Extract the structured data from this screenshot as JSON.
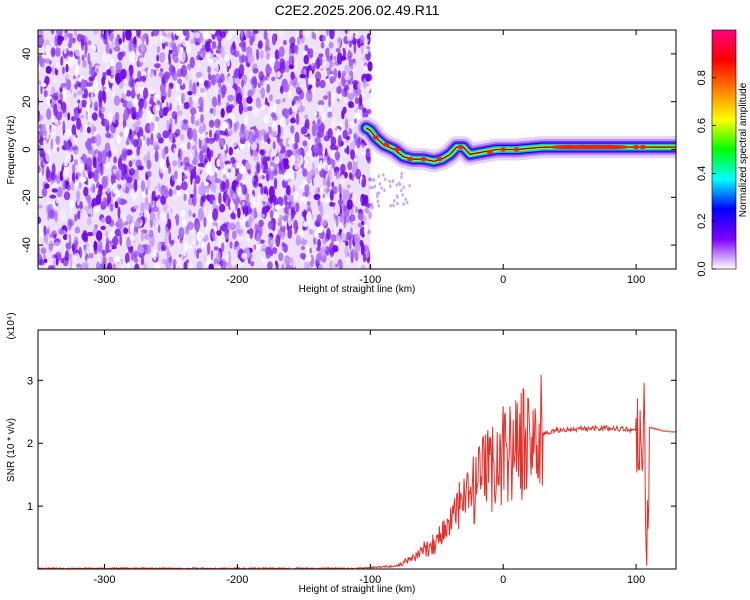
{
  "title": "C2E2.2025.206.02.49.R11",
  "chart_data": [
    {
      "type": "heatmap",
      "xlabel": "Height of straight line (km)",
      "ylabel": "Frequency (Hz)",
      "xlim": [
        -350,
        130
      ],
      "ylim": [
        -50,
        50
      ],
      "xticks": [
        -300,
        -200,
        -100,
        0,
        100
      ],
      "yticks": [
        -40,
        -20,
        0,
        20,
        40
      ],
      "noise_region_x": [
        -350,
        -100
      ],
      "ridge": [
        {
          "x": -103,
          "y": 9
        },
        {
          "x": -100,
          "y": 8
        },
        {
          "x": -96,
          "y": 5
        },
        {
          "x": -90,
          "y": 2
        },
        {
          "x": -82,
          "y": 0
        },
        {
          "x": -75,
          "y": -3
        },
        {
          "x": -68,
          "y": -4
        },
        {
          "x": -60,
          "y": -4
        },
        {
          "x": -52,
          "y": -5
        },
        {
          "x": -46,
          "y": -4
        },
        {
          "x": -40,
          "y": -2
        },
        {
          "x": -35,
          "y": 1
        },
        {
          "x": -30,
          "y": 1
        },
        {
          "x": -25,
          "y": -2
        },
        {
          "x": -15,
          "y": -1
        },
        {
          "x": -5,
          "y": 0
        },
        {
          "x": 10,
          "y": 0
        },
        {
          "x": 30,
          "y": 1
        },
        {
          "x": 60,
          "y": 1
        },
        {
          "x": 90,
          "y": 1
        },
        {
          "x": 110,
          "y": 1
        },
        {
          "x": 130,
          "y": 1
        }
      ],
      "colorbar": {
        "label": "Normalized spectral amplitude",
        "ticks": [
          0.0,
          0.2,
          0.4,
          0.6,
          0.8
        ],
        "tick_labels": [
          "0.0",
          "0.2",
          "0.4",
          "0.6",
          "0.8"
        ],
        "range": [
          0,
          1
        ],
        "colors": [
          "#ffffff",
          "#7f00ff",
          "#0000ff",
          "#00ffff",
          "#00ff00",
          "#ffff00",
          "#ff7f00",
          "#ff0000",
          "#ff0080"
        ]
      }
    },
    {
      "type": "line",
      "xlabel": "Height of straight line (km)",
      "ylabel": "SNR (10 * v/v)",
      "scale_label": "(x10⁴)",
      "xlim": [
        -350,
        130
      ],
      "ylim": [
        0,
        3.8
      ],
      "xticks": [
        -300,
        -200,
        -100,
        0,
        100
      ],
      "yticks": [
        1,
        2,
        3
      ],
      "series": [
        {
          "color": "#e8302a",
          "x": [
            -350,
            -110,
            -80,
            -70,
            -60,
            -50,
            -40,
            -30,
            -20,
            -10,
            0,
            10,
            20,
            30,
            40,
            50,
            60,
            70,
            80,
            90,
            100,
            104,
            106,
            108,
            110,
            120,
            130
          ],
          "y": [
            0.01,
            0.01,
            0.05,
            0.15,
            0.3,
            0.45,
            0.75,
            1.05,
            1.3,
            1.6,
            1.85,
            1.95,
            2.05,
            2.15,
            2.2,
            2.22,
            2.23,
            2.24,
            2.24,
            2.23,
            2.2,
            2.1,
            2.6,
            0.1,
            2.25,
            2.2,
            2.18
          ]
        }
      ]
    }
  ]
}
